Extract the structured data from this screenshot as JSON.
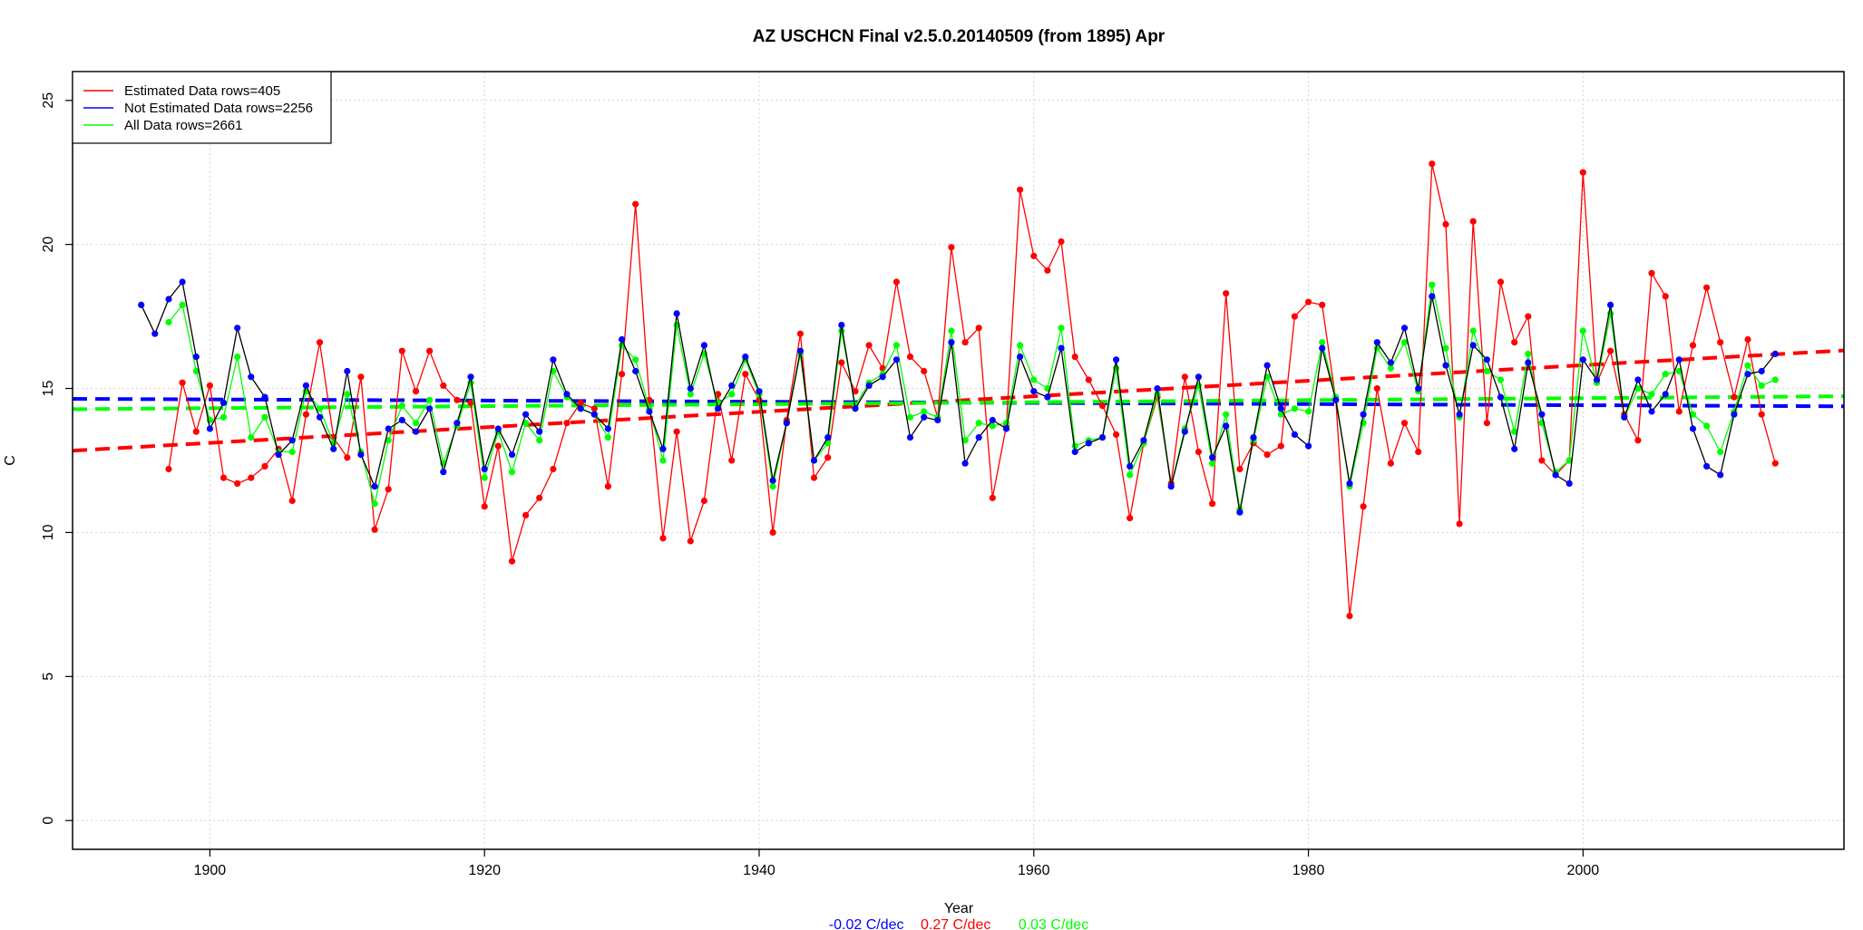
{
  "chart_data": {
    "type": "line",
    "title": "AZ USCHCN Final v2.5.0.20140509 (from 1895) Apr",
    "xlabel": "Year",
    "ylabel": "C",
    "xlim": [
      1890,
      2019
    ],
    "ylim": [
      -1,
      26
    ],
    "xticks": [
      1900,
      1920,
      1940,
      1960,
      1980,
      2000
    ],
    "yticks": [
      0,
      5,
      10,
      15,
      20,
      25
    ],
    "grid": true,
    "legend_position": "top-left",
    "legend": [
      {
        "label": "Estimated Data rows=405",
        "color": "#ff0000"
      },
      {
        "label": "Not Estimated Data rows=2256",
        "color": "#0000ff"
      },
      {
        "label": "All Data rows=2661",
        "color": "#00ff00"
      }
    ],
    "trend_captions": [
      {
        "text": "-0.02 C/dec",
        "color": "#0000ff"
      },
      {
        "text": "0.27 C/dec",
        "color": "#ff0000"
      },
      {
        "text": "0.03 C/dec",
        "color": "#00ff00"
      }
    ],
    "series": [
      {
        "name": "Estimated Data rows=405",
        "color": "#ff0000",
        "line_color": "#ff0000",
        "x": [
          1897,
          1898,
          1899,
          1900,
          1901,
          1902,
          1903,
          1904,
          1905,
          1906,
          1907,
          1908,
          1909,
          1910,
          1911,
          1912,
          1913,
          1914,
          1915,
          1916,
          1917,
          1918,
          1919,
          1920,
          1921,
          1922,
          1923,
          1924,
          1925,
          1926,
          1927,
          1928,
          1929,
          1930,
          1931,
          1932,
          1933,
          1934,
          1935,
          1936,
          1937,
          1938,
          1939,
          1940,
          1941,
          1942,
          1943,
          1944,
          1945,
          1946,
          1947,
          1948,
          1949,
          1950,
          1951,
          1952,
          1953,
          1954,
          1955,
          1956,
          1957,
          1958,
          1959,
          1960,
          1961,
          1962,
          1963,
          1964,
          1965,
          1966,
          1967,
          1968,
          1969,
          1970,
          1971,
          1972,
          1973,
          1974,
          1975,
          1976,
          1977,
          1978,
          1979,
          1980,
          1981,
          1982,
          1983,
          1984,
          1985,
          1986,
          1987,
          1988,
          1989,
          1990,
          1991,
          1992,
          1993,
          1994,
          1995,
          1996,
          1997,
          1998,
          1999,
          2000,
          2001,
          2002,
          2003,
          2004,
          2005,
          2006,
          2007,
          2008,
          2009,
          2010,
          2011,
          2012,
          2013,
          2014
        ],
        "y": [
          12.2,
          15.2,
          13.5,
          15.1,
          11.9,
          11.7,
          11.9,
          12.3,
          12.9,
          11.1,
          14.1,
          16.6,
          13.3,
          12.6,
          15.4,
          10.1,
          11.5,
          16.3,
          14.9,
          16.3,
          15.1,
          14.6,
          14.5,
          10.9,
          13.0,
          9.0,
          10.6,
          11.2,
          12.2,
          13.8,
          14.5,
          14.3,
          11.6,
          15.5,
          21.4,
          14.6,
          9.8,
          13.5,
          9.7,
          11.1,
          14.8,
          12.5,
          15.5,
          14.6,
          10.0,
          13.9,
          16.9,
          11.9,
          12.6,
          15.9,
          14.9,
          16.5,
          15.7,
          18.7,
          16.1,
          15.6,
          14.0,
          19.9,
          16.6,
          17.1,
          11.2,
          13.7,
          21.9,
          19.6,
          19.1,
          20.1,
          16.1,
          15.3,
          14.4,
          13.4,
          10.5,
          13.1,
          14.7,
          11.7,
          15.4,
          12.8,
          11.0,
          18.3,
          12.2,
          13.1,
          12.7,
          13.0,
          17.5,
          18.0,
          17.9,
          14.6,
          7.1,
          10.9,
          15.0,
          12.4,
          13.8,
          12.8,
          22.8,
          20.7,
          10.3,
          20.8,
          13.8,
          18.7,
          16.6,
          17.5,
          12.5,
          12.0,
          12.5,
          22.5,
          15.2,
          16.3,
          14.1,
          13.2,
          19.0,
          18.2,
          14.2,
          16.5,
          18.5,
          16.6,
          14.7,
          16.7,
          14.1,
          12.4
        ],
        "trend": {
          "x": [
            1890,
            2019
          ],
          "y": [
            12.84,
            16.32
          ]
        }
      },
      {
        "name": "Not Estimated Data rows=2256",
        "color": "#0000ff",
        "line_color": "#000000",
        "x": [
          1895,
          1896,
          1897,
          1898,
          1899,
          1900,
          1901,
          1902,
          1903,
          1904,
          1905,
          1906,
          1907,
          1908,
          1909,
          1910,
          1911,
          1912,
          1913,
          1914,
          1915,
          1916,
          1917,
          1918,
          1919,
          1920,
          1921,
          1922,
          1923,
          1924,
          1925,
          1926,
          1927,
          1928,
          1929,
          1930,
          1931,
          1932,
          1933,
          1934,
          1935,
          1936,
          1937,
          1938,
          1939,
          1940,
          1941,
          1942,
          1943,
          1944,
          1945,
          1946,
          1947,
          1948,
          1949,
          1950,
          1951,
          1952,
          1953,
          1954,
          1955,
          1956,
          1957,
          1958,
          1959,
          1960,
          1961,
          1962,
          1963,
          1964,
          1965,
          1966,
          1967,
          1968,
          1969,
          1970,
          1971,
          1972,
          1973,
          1974,
          1975,
          1976,
          1977,
          1978,
          1979,
          1980,
          1981,
          1982,
          1983,
          1984,
          1985,
          1986,
          1987,
          1988,
          1989,
          1990,
          1991,
          1992,
          1993,
          1994,
          1995,
          1996,
          1997,
          1998,
          1999,
          2000,
          2001,
          2002,
          2003,
          2004,
          2005,
          2006,
          2007,
          2008,
          2009,
          2010,
          2011,
          2012,
          2013,
          2014
        ],
        "y": [
          17.9,
          16.9,
          18.1,
          18.7,
          16.1,
          13.6,
          14.5,
          17.1,
          15.4,
          14.7,
          12.7,
          13.2,
          15.1,
          14.0,
          12.9,
          15.6,
          12.7,
          11.6,
          13.6,
          13.9,
          13.5,
          14.3,
          12.1,
          13.8,
          15.4,
          12.2,
          13.6,
          12.7,
          14.1,
          13.5,
          16.0,
          14.8,
          14.3,
          14.1,
          13.6,
          16.7,
          15.6,
          14.2,
          12.9,
          17.6,
          15.0,
          16.5,
          14.3,
          15.1,
          16.1,
          14.9,
          11.8,
          13.8,
          16.3,
          12.5,
          13.3,
          17.2,
          14.3,
          15.1,
          15.4,
          16.0,
          13.3,
          14.0,
          13.9,
          16.6,
          12.4,
          13.3,
          13.9,
          13.6,
          16.1,
          14.9,
          14.7,
          16.4,
          12.8,
          13.1,
          13.3,
          16.0,
          12.3,
          13.2,
          15.0,
          11.6,
          13.5,
          15.4,
          12.6,
          13.7,
          10.7,
          13.3,
          15.8,
          14.3,
          13.4,
          13.0,
          16.4,
          14.6,
          11.7,
          14.1,
          16.6,
          15.9,
          17.1,
          15.0,
          18.2,
          15.8,
          14.1,
          16.5,
          16.0,
          14.7,
          12.9,
          15.9,
          14.1,
          12.0,
          11.7,
          16.0,
          15.3,
          17.9,
          14.0,
          15.3,
          14.2,
          14.8,
          16.0,
          13.6,
          12.3,
          12.0,
          14.1,
          15.5,
          15.6,
          16.2
        ],
        "trend": {
          "x": [
            1890,
            2019
          ],
          "y": [
            14.64,
            14.38
          ]
        }
      },
      {
        "name": "All Data rows=2661",
        "color": "#00ff00",
        "line_color": "#00ff00",
        "x": [
          1897,
          1898,
          1899,
          1900,
          1901,
          1902,
          1903,
          1904,
          1905,
          1906,
          1907,
          1908,
          1909,
          1910,
          1911,
          1912,
          1913,
          1914,
          1915,
          1916,
          1917,
          1918,
          1919,
          1920,
          1921,
          1922,
          1923,
          1924,
          1925,
          1926,
          1927,
          1928,
          1929,
          1930,
          1931,
          1932,
          1933,
          1934,
          1935,
          1936,
          1937,
          1938,
          1939,
          1940,
          1941,
          1942,
          1943,
          1944,
          1945,
          1946,
          1947,
          1948,
          1949,
          1950,
          1951,
          1952,
          1953,
          1954,
          1955,
          1956,
          1957,
          1958,
          1959,
          1960,
          1961,
          1962,
          1963,
          1964,
          1965,
          1966,
          1967,
          1968,
          1969,
          1970,
          1971,
          1972,
          1973,
          1974,
          1975,
          1976,
          1977,
          1978,
          1979,
          1980,
          1981,
          1982,
          1983,
          1984,
          1985,
          1986,
          1987,
          1988,
          1989,
          1990,
          1991,
          1992,
          1993,
          1994,
          1995,
          1996,
          1997,
          1998,
          1999,
          2000,
          2001,
          2002,
          2003,
          2004,
          2005,
          2006,
          2007,
          2008,
          2009,
          2010,
          2011,
          2012,
          2013,
          2014
        ],
        "y": [
          17.3,
          17.9,
          15.6,
          13.9,
          14.0,
          16.1,
          13.3,
          14.0,
          12.8,
          12.8,
          14.9,
          14.3,
          13.1,
          14.8,
          12.8,
          11.0,
          13.2,
          14.4,
          13.8,
          14.6,
          12.4,
          13.7,
          15.2,
          11.9,
          13.5,
          12.1,
          13.8,
          13.2,
          15.6,
          14.7,
          14.3,
          14.1,
          13.3,
          16.5,
          16.0,
          14.3,
          12.5,
          17.2,
          14.8,
          16.2,
          14.5,
          14.8,
          16.0,
          14.8,
          11.6,
          13.8,
          16.2,
          12.5,
          13.1,
          17.0,
          14.4,
          15.2,
          15.5,
          16.5,
          14.0,
          14.2,
          14.0,
          17.0,
          13.2,
          13.8,
          13.7,
          13.8,
          16.5,
          15.3,
          15.0,
          17.1,
          13.0,
          13.2,
          13.3,
          15.7,
          12.0,
          13.1,
          14.8,
          11.6,
          13.6,
          15.1,
          12.4,
          14.1,
          10.8,
          13.2,
          15.4,
          14.1,
          14.3,
          14.2,
          16.6,
          14.7,
          11.6,
          13.8,
          16.4,
          15.7,
          16.6,
          14.9,
          18.6,
          16.4,
          14.0,
          17.0,
          15.6,
          15.3,
          13.5,
          16.2,
          13.8,
          12.1,
          12.5,
          17.0,
          15.2,
          17.6,
          14.0,
          15.0,
          14.8,
          15.5,
          15.6,
          14.1,
          13.7,
          12.8,
          14.2,
          15.8,
          15.1,
          15.3
        ],
        "trend": {
          "x": [
            1890,
            2019
          ],
          "y": [
            14.28,
            14.73
          ]
        }
      }
    ]
  }
}
